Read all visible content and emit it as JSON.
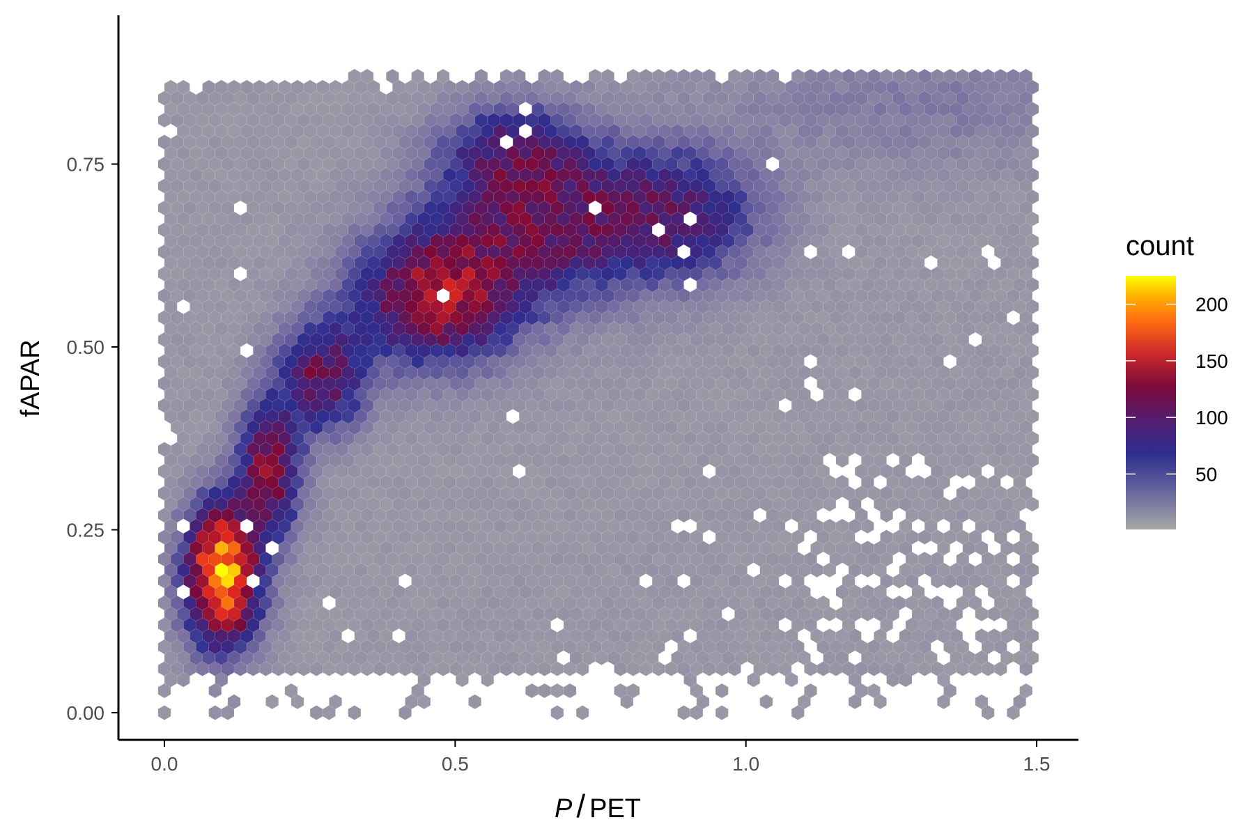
{
  "chart_data": {
    "type": "hexbin",
    "xlabel": "P/PET",
    "xlabel_parts": {
      "italic": "P",
      "slash": "/",
      "rest": "PET"
    },
    "ylabel": "fAPAR",
    "xlim": [
      -0.08,
      1.58
    ],
    "ylim": [
      -0.04,
      0.95
    ],
    "x_ticks": [
      0.0,
      0.5,
      1.0,
      1.5
    ],
    "x_tick_labels": [
      "0.0",
      "0.5",
      "1.0",
      "1.5"
    ],
    "y_ticks": [
      0.0,
      0.25,
      0.5,
      0.75
    ],
    "y_tick_labels": [
      "0.00",
      "0.25",
      "0.50",
      "0.75"
    ],
    "grid": false,
    "legend": {
      "title": "count",
      "placement": "right",
      "range": [
        1,
        225
      ],
      "ticks": [
        50,
        100,
        150,
        200
      ],
      "tick_labels": [
        "50",
        "100",
        "150",
        "200"
      ]
    },
    "colors": {
      "low": "#a8a8a8",
      "mid_low": "#2e2e8f",
      "mid": "#7a0a3a",
      "mid_high": "#e8261f",
      "high": "#ffff00"
    },
    "density_components": [
      {
        "name": "dry-cluster",
        "x": 0.1,
        "y": 0.19,
        "sx": 0.04,
        "sy": 0.06,
        "amp": 200
      },
      {
        "name": "ridge-low",
        "x": 0.18,
        "y": 0.33,
        "sx": 0.035,
        "sy": 0.06,
        "amp": 95
      },
      {
        "name": "ridge-mid",
        "x": 0.27,
        "y": 0.46,
        "sx": 0.05,
        "sy": 0.05,
        "amp": 80
      },
      {
        "name": "ridge-upper",
        "x": 0.47,
        "y": 0.57,
        "sx": 0.09,
        "sy": 0.06,
        "amp": 110
      },
      {
        "name": "plateau",
        "x": 0.65,
        "y": 0.67,
        "sx": 0.12,
        "sy": 0.07,
        "amp": 75
      },
      {
        "name": "plateau-top",
        "x": 0.6,
        "y": 0.77,
        "sx": 0.08,
        "sy": 0.04,
        "amp": 55
      },
      {
        "name": "plateau-right",
        "x": 0.88,
        "y": 0.68,
        "sx": 0.1,
        "sy": 0.06,
        "amp": 60
      },
      {
        "name": "wet-top",
        "x": 1.3,
        "y": 0.83,
        "sx": 0.25,
        "sy": 0.06,
        "amp": 12
      }
    ],
    "background_count": 8,
    "extent": {
      "x": [
        0.0,
        1.5
      ],
      "y": [
        0.0,
        0.88
      ]
    }
  }
}
